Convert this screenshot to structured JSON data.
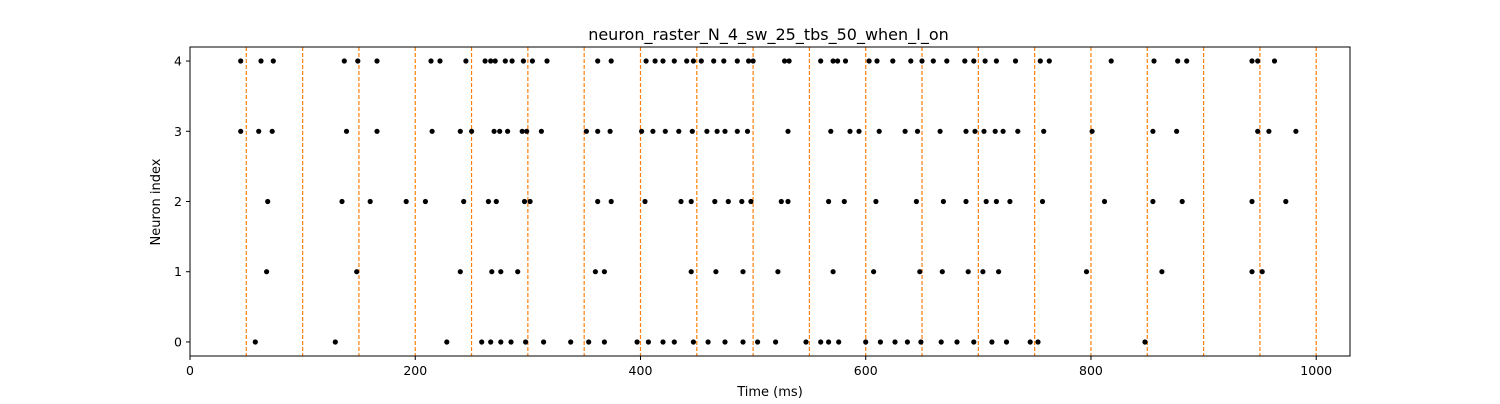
{
  "chart_data": {
    "type": "scatter",
    "title": "neuron_raster_N_4_sw_25_tbs_50_when_I_on",
    "xlabel": "Time (ms)",
    "ylabel": "Neuron index",
    "xlim": [
      0,
      1030
    ],
    "ylim": [
      -0.2,
      4.2
    ],
    "xticks": [
      0,
      200,
      400,
      600,
      800,
      1000
    ],
    "yticks": [
      0,
      1,
      2,
      3,
      4
    ],
    "grid": false,
    "marker_color": "#000000",
    "vline_color": "#ff7f0e",
    "vlines": [
      50,
      100,
      150,
      200,
      250,
      300,
      350,
      400,
      450,
      500,
      550,
      600,
      650,
      700,
      750,
      800,
      850,
      900,
      950,
      1000
    ],
    "series": [
      {
        "neuron": 4,
        "x": [
          45,
          63,
          74,
          137,
          149,
          166,
          214,
          222,
          245,
          262,
          267,
          271,
          280,
          286,
          296,
          304,
          317,
          362,
          374,
          405,
          413,
          420,
          430,
          441,
          447,
          454,
          465,
          474,
          486,
          496,
          500,
          528,
          532,
          560,
          571,
          575,
          582,
          603,
          610,
          624,
          640,
          650,
          660,
          672,
          688,
          696,
          706,
          716,
          733,
          755,
          763,
          818,
          856,
          877,
          885,
          943,
          948,
          963
        ]
      },
      {
        "neuron": 3,
        "x": [
          45,
          61,
          73,
          139,
          166,
          215,
          240,
          250,
          270,
          275,
          282,
          295,
          299,
          312,
          352,
          362,
          373,
          401,
          411,
          422,
          434,
          446,
          459,
          468,
          475,
          486,
          495,
          531,
          569,
          586,
          594,
          612,
          635,
          646,
          666,
          689,
          697,
          705,
          715,
          722,
          735,
          758,
          801,
          855,
          876,
          948,
          958,
          982
        ]
      },
      {
        "neuron": 2,
        "x": [
          69,
          135,
          160,
          192,
          209,
          243,
          265,
          272,
          297,
          302,
          362,
          374,
          404,
          436,
          445,
          466,
          478,
          490,
          498,
          525,
          531,
          567,
          581,
          609,
          645,
          669,
          689,
          707,
          716,
          728,
          757,
          812,
          855,
          881,
          943,
          973
        ]
      },
      {
        "neuron": 1,
        "x": [
          68,
          148,
          240,
          268,
          276,
          291,
          360,
          368,
          445,
          467,
          491,
          522,
          571,
          607,
          648,
          668,
          691,
          704,
          718,
          796,
          863,
          943,
          952
        ]
      },
      {
        "neuron": 0,
        "x": [
          58,
          129,
          228,
          259,
          267,
          276,
          285,
          298,
          314,
          338,
          354,
          368,
          397,
          407,
          420,
          430,
          447,
          460,
          475,
          491,
          504,
          520,
          547,
          560,
          567,
          576,
          600,
          613,
          626,
          637,
          649,
          667,
          681,
          696,
          712,
          725,
          746,
          753,
          848
        ]
      }
    ]
  }
}
